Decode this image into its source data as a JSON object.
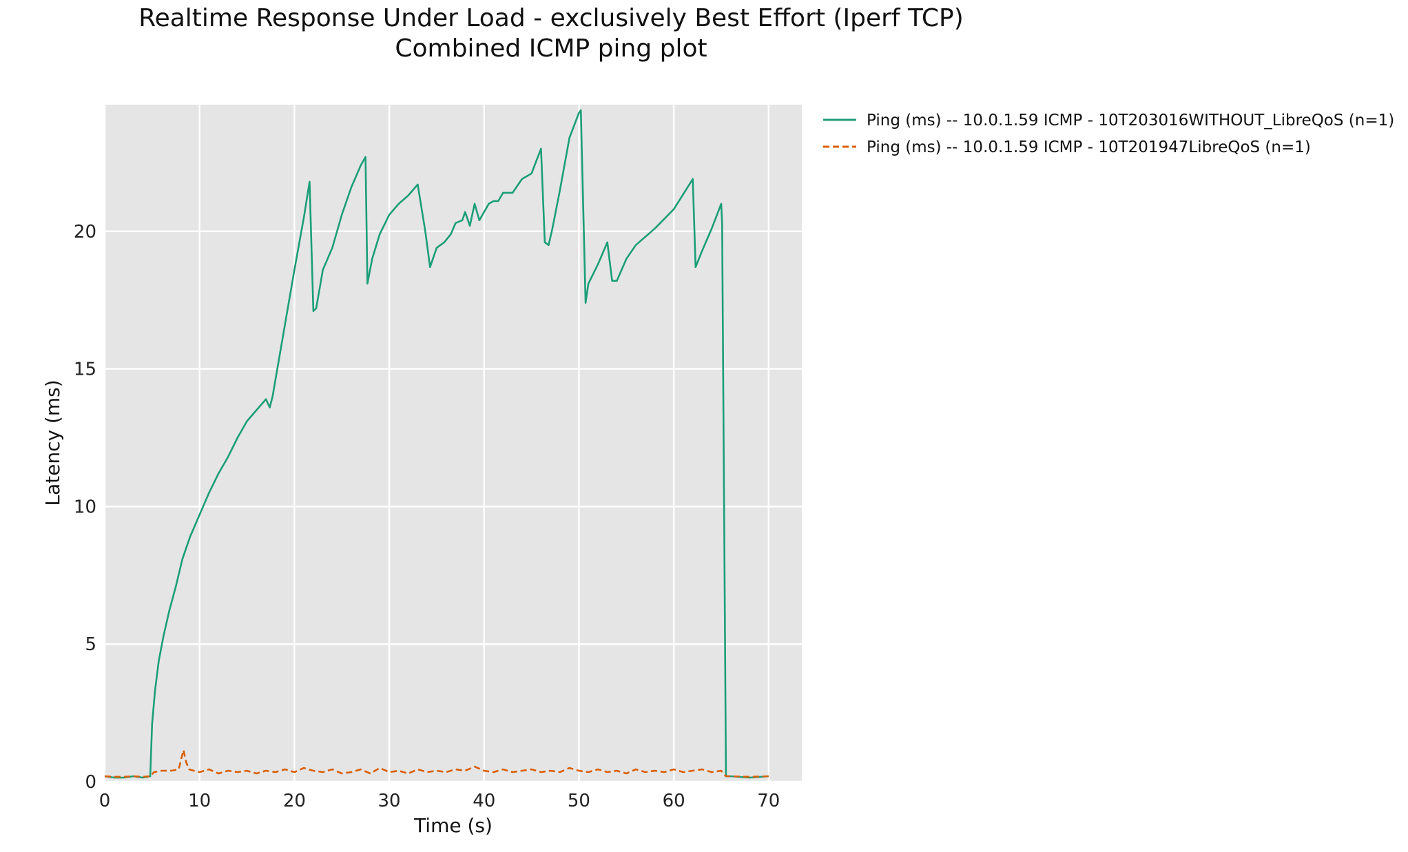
{
  "chart_data": {
    "type": "line",
    "title": "Realtime Response Under Load - exclusively Best Effort (Iperf TCP)",
    "subtitle": "Combined ICMP ping plot",
    "xlabel": "Time (s)",
    "ylabel": "Latency (ms)",
    "xlim": [
      0,
      73.5
    ],
    "ylim": [
      0,
      24.6
    ],
    "xticks": [
      0,
      10,
      20,
      30,
      40,
      50,
      60,
      70
    ],
    "yticks": [
      0,
      5,
      10,
      15,
      20
    ],
    "grid": true,
    "background": "#e5e5e5",
    "legend_position": "outside-top-right",
    "series": [
      {
        "name": "Ping (ms) -- 10.0.1.59 ICMP - 10T203016WITHOUT_LibreQoS (n=1)",
        "color": "#1b9e77",
        "dash": "solid",
        "x": [
          0,
          1,
          2,
          3,
          4,
          4.8,
          5.0,
          5.3,
          5.7,
          6.2,
          6.8,
          7.5,
          8.2,
          9.0,
          10.0,
          11.0,
          12.0,
          13.0,
          14.0,
          15.0,
          16.0,
          17.0,
          17.4,
          17.7,
          18.0,
          19.0,
          20.0,
          21.0,
          21.6,
          22.0,
          22.3,
          23.0,
          24.0,
          25.0,
          26.0,
          27.0,
          27.5,
          27.7,
          28.2,
          29.0,
          30.0,
          31.0,
          32.0,
          33.0,
          33.8,
          34.3,
          35.0,
          35.8,
          36.5,
          37.0,
          37.7,
          38.0,
          38.5,
          39.0,
          39.5,
          40.0,
          40.5,
          41.0,
          41.5,
          42.0,
          43.0,
          44.0,
          45.0,
          46.0,
          46.4,
          46.8,
          47.2,
          48.0,
          49.0,
          50.0,
          50.2,
          50.7,
          51.0,
          52.0,
          53.0,
          53.5,
          54.0,
          55.0,
          56.0,
          58.0,
          60.0,
          62.0,
          62.3,
          63.0,
          64.0,
          65.0,
          65.1,
          65.5,
          66.0,
          68.0,
          70.0
        ],
        "y": [
          0.2,
          0.15,
          0.15,
          0.2,
          0.15,
          0.2,
          2.1,
          3.3,
          4.4,
          5.3,
          6.2,
          7.1,
          8.1,
          8.9,
          9.7,
          10.5,
          11.2,
          11.8,
          12.5,
          13.1,
          13.5,
          13.9,
          13.6,
          14.0,
          14.6,
          16.6,
          18.6,
          20.5,
          21.8,
          17.1,
          17.2,
          18.6,
          19.4,
          20.6,
          21.6,
          22.4,
          22.7,
          18.1,
          19.0,
          19.9,
          20.6,
          21.0,
          21.3,
          21.7,
          20.0,
          18.7,
          19.4,
          19.6,
          19.9,
          20.3,
          20.4,
          20.7,
          20.2,
          21.0,
          20.4,
          20.7,
          21.0,
          21.1,
          21.1,
          21.4,
          21.4,
          21.9,
          22.1,
          23.0,
          19.6,
          19.5,
          20.1,
          21.5,
          23.4,
          24.3,
          24.4,
          17.4,
          18.1,
          18.8,
          19.6,
          18.2,
          18.2,
          19.0,
          19.5,
          20.1,
          20.8,
          21.9,
          18.7,
          19.3,
          20.1,
          21.0,
          20.3,
          0.2,
          0.2,
          0.15,
          0.2
        ]
      },
      {
        "name": "Ping (ms) -- 10.0.1.59 ICMP - 10T201947LibreQoS (n=1)",
        "color": "#d95f02",
        "dash": "dashed",
        "x": [
          0,
          1,
          2,
          3,
          4,
          4.8,
          5.2,
          6.0,
          7.0,
          7.8,
          8.3,
          8.6,
          8.9,
          9.4,
          10.0,
          11.0,
          12.0,
          13.0,
          14.0,
          15.0,
          16.0,
          17.0,
          18.0,
          19.0,
          20.0,
          21.0,
          22.0,
          23.0,
          24.0,
          25.0,
          26.0,
          27.0,
          28.0,
          29.0,
          30.0,
          31.0,
          32.0,
          33.0,
          34.0,
          35.0,
          36.0,
          37.0,
          38.0,
          39.0,
          40.0,
          41.0,
          42.0,
          43.0,
          44.0,
          45.0,
          46.0,
          47.0,
          48.0,
          49.0,
          50.0,
          51.0,
          52.0,
          53.0,
          54.0,
          55.0,
          56.0,
          57.0,
          58.0,
          59.0,
          60.0,
          61.0,
          62.0,
          63.0,
          64.0,
          65.0,
          65.5,
          66.0,
          68.0,
          70.0
        ],
        "y": [
          0.2,
          0.18,
          0.18,
          0.2,
          0.18,
          0.2,
          0.35,
          0.4,
          0.4,
          0.45,
          1.15,
          0.7,
          0.45,
          0.4,
          0.35,
          0.45,
          0.3,
          0.4,
          0.35,
          0.4,
          0.3,
          0.4,
          0.35,
          0.45,
          0.35,
          0.5,
          0.4,
          0.35,
          0.45,
          0.3,
          0.35,
          0.45,
          0.3,
          0.5,
          0.35,
          0.4,
          0.3,
          0.45,
          0.35,
          0.4,
          0.35,
          0.45,
          0.4,
          0.55,
          0.4,
          0.35,
          0.45,
          0.35,
          0.4,
          0.45,
          0.35,
          0.4,
          0.35,
          0.5,
          0.4,
          0.35,
          0.45,
          0.35,
          0.4,
          0.3,
          0.45,
          0.35,
          0.4,
          0.35,
          0.45,
          0.35,
          0.4,
          0.45,
          0.35,
          0.4,
          0.2,
          0.2,
          0.18,
          0.2
        ]
      }
    ]
  }
}
